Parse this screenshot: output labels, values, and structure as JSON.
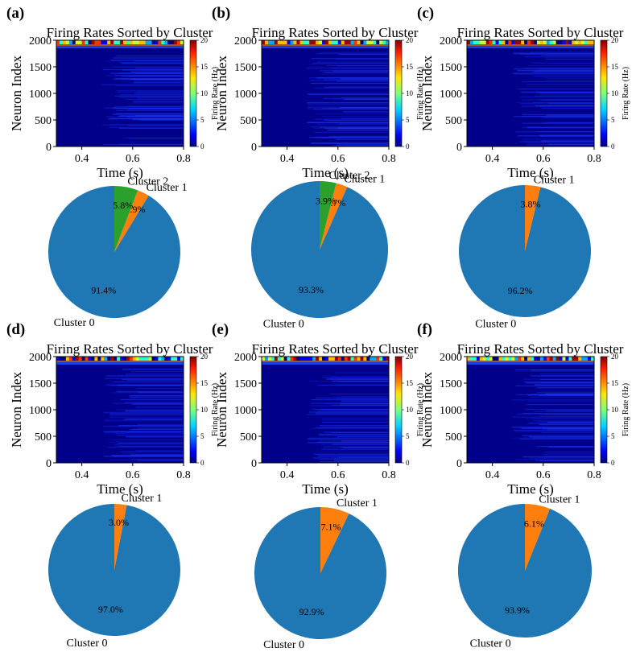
{
  "colors": {
    "cluster_0": "#1f77b4",
    "cluster_1": "#ff7f0e",
    "cluster_2": "#2ca02c",
    "heatmap_background": "#00008b"
  },
  "chart_data": [
    {
      "panel": "(a)",
      "heatmap": {
        "type": "heatmap",
        "title": "Firing Rates Sorted by Cluster",
        "xlabel": "Time (s)",
        "ylabel": "Neuron Index",
        "xlim": [
          0.3,
          0.8
        ],
        "ylim": [
          0,
          2000
        ],
        "xticks": [
          0.4,
          0.6,
          0.8
        ],
        "yticks": [
          0,
          500,
          1000,
          1500,
          2000
        ],
        "colorbar": {
          "label": "Firing Rate (Hz)",
          "range": [
            0,
            20
          ],
          "ticks": [
            0,
            5,
            10,
            15,
            20
          ]
        }
      },
      "pie": {
        "type": "pie",
        "slices": [
          {
            "label": "Cluster 0",
            "percent": 91.4,
            "pct_label": "91.4%"
          },
          {
            "label": "Cluster 1",
            "percent": 2.9,
            "pct_label": "2.9%"
          },
          {
            "label": "Cluster 2",
            "percent": 5.8,
            "pct_label": "5.8%"
          }
        ]
      }
    },
    {
      "panel": "(b)",
      "heatmap": {
        "type": "heatmap",
        "title": "Firing Rates Sorted by Cluster",
        "xlabel": "Time (s)",
        "ylabel": "Neuron Index",
        "xlim": [
          0.3,
          0.8
        ],
        "ylim": [
          0,
          2000
        ],
        "xticks": [
          0.4,
          0.6,
          0.8
        ],
        "yticks": [
          0,
          500,
          1000,
          1500,
          2000
        ],
        "colorbar": {
          "label": "Firing Rate (Hz)",
          "range": [
            0,
            20
          ],
          "ticks": [
            0,
            5,
            10,
            15,
            20
          ]
        }
      },
      "pie": {
        "type": "pie",
        "slices": [
          {
            "label": "Cluster 0",
            "percent": 93.3,
            "pct_label": "93.3%"
          },
          {
            "label": "Cluster 1",
            "percent": 2.7,
            "pct_label": "2.7%"
          },
          {
            "label": "Cluster 2",
            "percent": 3.9,
            "pct_label": "3.9%"
          }
        ]
      }
    },
    {
      "panel": "(c)",
      "heatmap": {
        "type": "heatmap",
        "title": "Firing Rates Sorted by Cluster",
        "xlabel": "Time (s)",
        "ylabel": "Neuron Index",
        "xlim": [
          0.3,
          0.8
        ],
        "ylim": [
          0,
          2000
        ],
        "xticks": [
          0.4,
          0.6,
          0.8
        ],
        "yticks": [
          0,
          500,
          1000,
          1500,
          2000
        ],
        "colorbar": {
          "label": "Firing Rate (Hz)",
          "range": [
            0,
            20
          ],
          "ticks": [
            0,
            5,
            10,
            15,
            20
          ]
        }
      },
      "pie": {
        "type": "pie",
        "slices": [
          {
            "label": "Cluster 0",
            "percent": 96.2,
            "pct_label": "96.2%"
          },
          {
            "label": "Cluster 1",
            "percent": 3.8,
            "pct_label": "3.8%"
          }
        ]
      }
    },
    {
      "panel": "(d)",
      "heatmap": {
        "type": "heatmap",
        "title": "Firing Rates Sorted by Cluster",
        "xlabel": "Time (s)",
        "ylabel": "Neuron Index",
        "xlim": [
          0.3,
          0.8
        ],
        "ylim": [
          0,
          2000
        ],
        "xticks": [
          0.4,
          0.6,
          0.8
        ],
        "yticks": [
          0,
          500,
          1000,
          1500,
          2000
        ],
        "colorbar": {
          "label": "Firing Rate (Hz)",
          "range": [
            0,
            20
          ],
          "ticks": [
            0,
            5,
            10,
            15,
            20
          ]
        }
      },
      "pie": {
        "type": "pie",
        "slices": [
          {
            "label": "Cluster 0",
            "percent": 97.0,
            "pct_label": "97.0%"
          },
          {
            "label": "Cluster 1",
            "percent": 3.0,
            "pct_label": "3.0%"
          }
        ]
      }
    },
    {
      "panel": "(e)",
      "heatmap": {
        "type": "heatmap",
        "title": "Firing Rates Sorted by Cluster",
        "xlabel": "Time (s)",
        "ylabel": "Neuron Index",
        "xlim": [
          0.3,
          0.8
        ],
        "ylim": [
          0,
          2000
        ],
        "xticks": [
          0.4,
          0.6,
          0.8
        ],
        "yticks": [
          0,
          500,
          1000,
          1500,
          2000
        ],
        "colorbar": {
          "label": "Firing Rate (Hz)",
          "range": [
            0,
            20
          ],
          "ticks": [
            0,
            5,
            10,
            15,
            20
          ]
        }
      },
      "pie": {
        "type": "pie",
        "slices": [
          {
            "label": "Cluster 0",
            "percent": 92.9,
            "pct_label": "92.9%"
          },
          {
            "label": "Cluster 1",
            "percent": 7.1,
            "pct_label": "7.1%"
          }
        ]
      }
    },
    {
      "panel": "(f)",
      "heatmap": {
        "type": "heatmap",
        "title": "Firing Rates Sorted by Cluster",
        "xlabel": "Time (s)",
        "ylabel": "Neuron Index",
        "xlim": [
          0.3,
          0.8
        ],
        "ylim": [
          0,
          2000
        ],
        "xticks": [
          0.4,
          0.6,
          0.8
        ],
        "yticks": [
          0,
          500,
          1000,
          1500,
          2000
        ],
        "colorbar": {
          "label": "Firing Rate (Hz)",
          "range": [
            0,
            20
          ],
          "ticks": [
            0,
            5,
            10,
            15,
            20
          ]
        }
      },
      "pie": {
        "type": "pie",
        "slices": [
          {
            "label": "Cluster 0",
            "percent": 93.9,
            "pct_label": "93.9%"
          },
          {
            "label": "Cluster 1",
            "percent": 6.1,
            "pct_label": "6.1%"
          }
        ]
      }
    }
  ]
}
